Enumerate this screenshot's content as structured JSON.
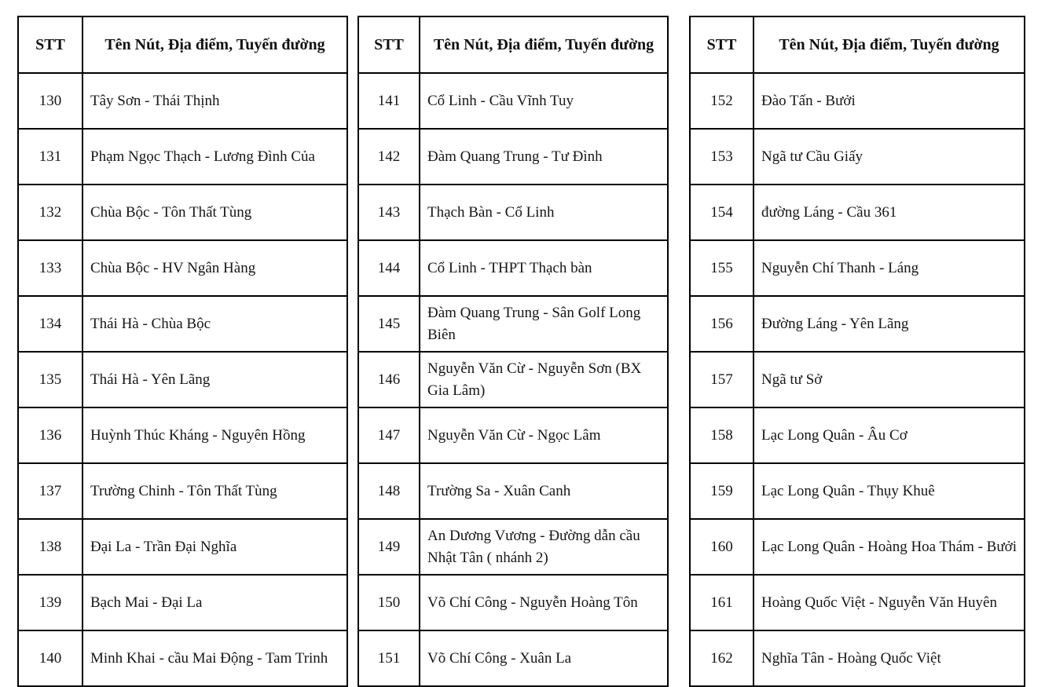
{
  "header": {
    "stt": "STT",
    "name": "Tên Nút, Địa điểm, Tuyến đường"
  },
  "colors": {
    "background": "#ffffff",
    "border": "#000000",
    "text": "#161616"
  },
  "tables": [
    {
      "rows": [
        {
          "stt": "130",
          "name": "Tây Sơn - Thái Thịnh"
        },
        {
          "stt": "131",
          "name": "Phạm Ngọc Thạch - Lương Đình Của"
        },
        {
          "stt": "132",
          "name": "Chùa Bộc - Tôn Thất Tùng"
        },
        {
          "stt": "133",
          "name": "Chùa Bộc - HV Ngân Hàng"
        },
        {
          "stt": "134",
          "name": "Thái Hà - Chùa Bộc"
        },
        {
          "stt": "135",
          "name": "Thái Hà - Yên Lãng"
        },
        {
          "stt": "136",
          "name": "Huỳnh Thúc Kháng - Nguyên Hồng"
        },
        {
          "stt": "137",
          "name": "Trường Chinh - Tôn Thất Tùng"
        },
        {
          "stt": "138",
          "name": "Đại La - Trần Đại Nghĩa"
        },
        {
          "stt": "139",
          "name": "Bạch Mai - Đại La"
        },
        {
          "stt": "140",
          "name": "Minh Khai - cầu Mai Động - Tam Trinh"
        }
      ]
    },
    {
      "rows": [
        {
          "stt": "141",
          "name": "Cổ Linh - Cầu Vĩnh Tuy"
        },
        {
          "stt": "142",
          "name": "Đàm Quang Trung - Tư Đình"
        },
        {
          "stt": "143",
          "name": "Thạch Bàn - Cổ Linh"
        },
        {
          "stt": "144",
          "name": "Cổ Linh - THPT Thạch bàn"
        },
        {
          "stt": "145",
          "name": "Đàm Quang Trung - Sân Golf Long Biên"
        },
        {
          "stt": "146",
          "name": "Nguyễn Văn Cừ - Nguyễn Sơn (BX Gia Lâm)"
        },
        {
          "stt": "147",
          "name": "Nguyễn Văn Cừ - Ngọc Lâm"
        },
        {
          "stt": "148",
          "name": "Trường Sa - Xuân Canh"
        },
        {
          "stt": "149",
          "name": "An Dương Vương - Đường dẫn cầu Nhật Tân ( nhánh 2)"
        },
        {
          "stt": "150",
          "name": "Võ Chí Công - Nguyễn Hoàng Tôn"
        },
        {
          "stt": "151",
          "name": "Võ Chí Công - Xuân La"
        }
      ]
    },
    {
      "rows": [
        {
          "stt": "152",
          "name": "Đào Tấn - Bưởi"
        },
        {
          "stt": "153",
          "name": "Ngã tư Cầu Giấy"
        },
        {
          "stt": "154",
          "name": "đường Láng - Cầu 361"
        },
        {
          "stt": "155",
          "name": "Nguyễn Chí Thanh - Láng"
        },
        {
          "stt": "156",
          "name": "Đường Láng - Yên Lãng"
        },
        {
          "stt": "157",
          "name": "Ngã tư Sở"
        },
        {
          "stt": "158",
          "name": "Lạc Long Quân - Âu Cơ"
        },
        {
          "stt": "159",
          "name": "Lạc Long Quân - Thụy Khuê"
        },
        {
          "stt": "160",
          "name": "Lạc Long Quân - Hoàng Hoa Thám - Bưởi"
        },
        {
          "stt": "161",
          "name": "Hoàng Quốc Việt - Nguyễn Văn Huyên"
        },
        {
          "stt": "162",
          "name": "Nghĩa Tân - Hoàng Quốc Việt"
        }
      ]
    }
  ]
}
